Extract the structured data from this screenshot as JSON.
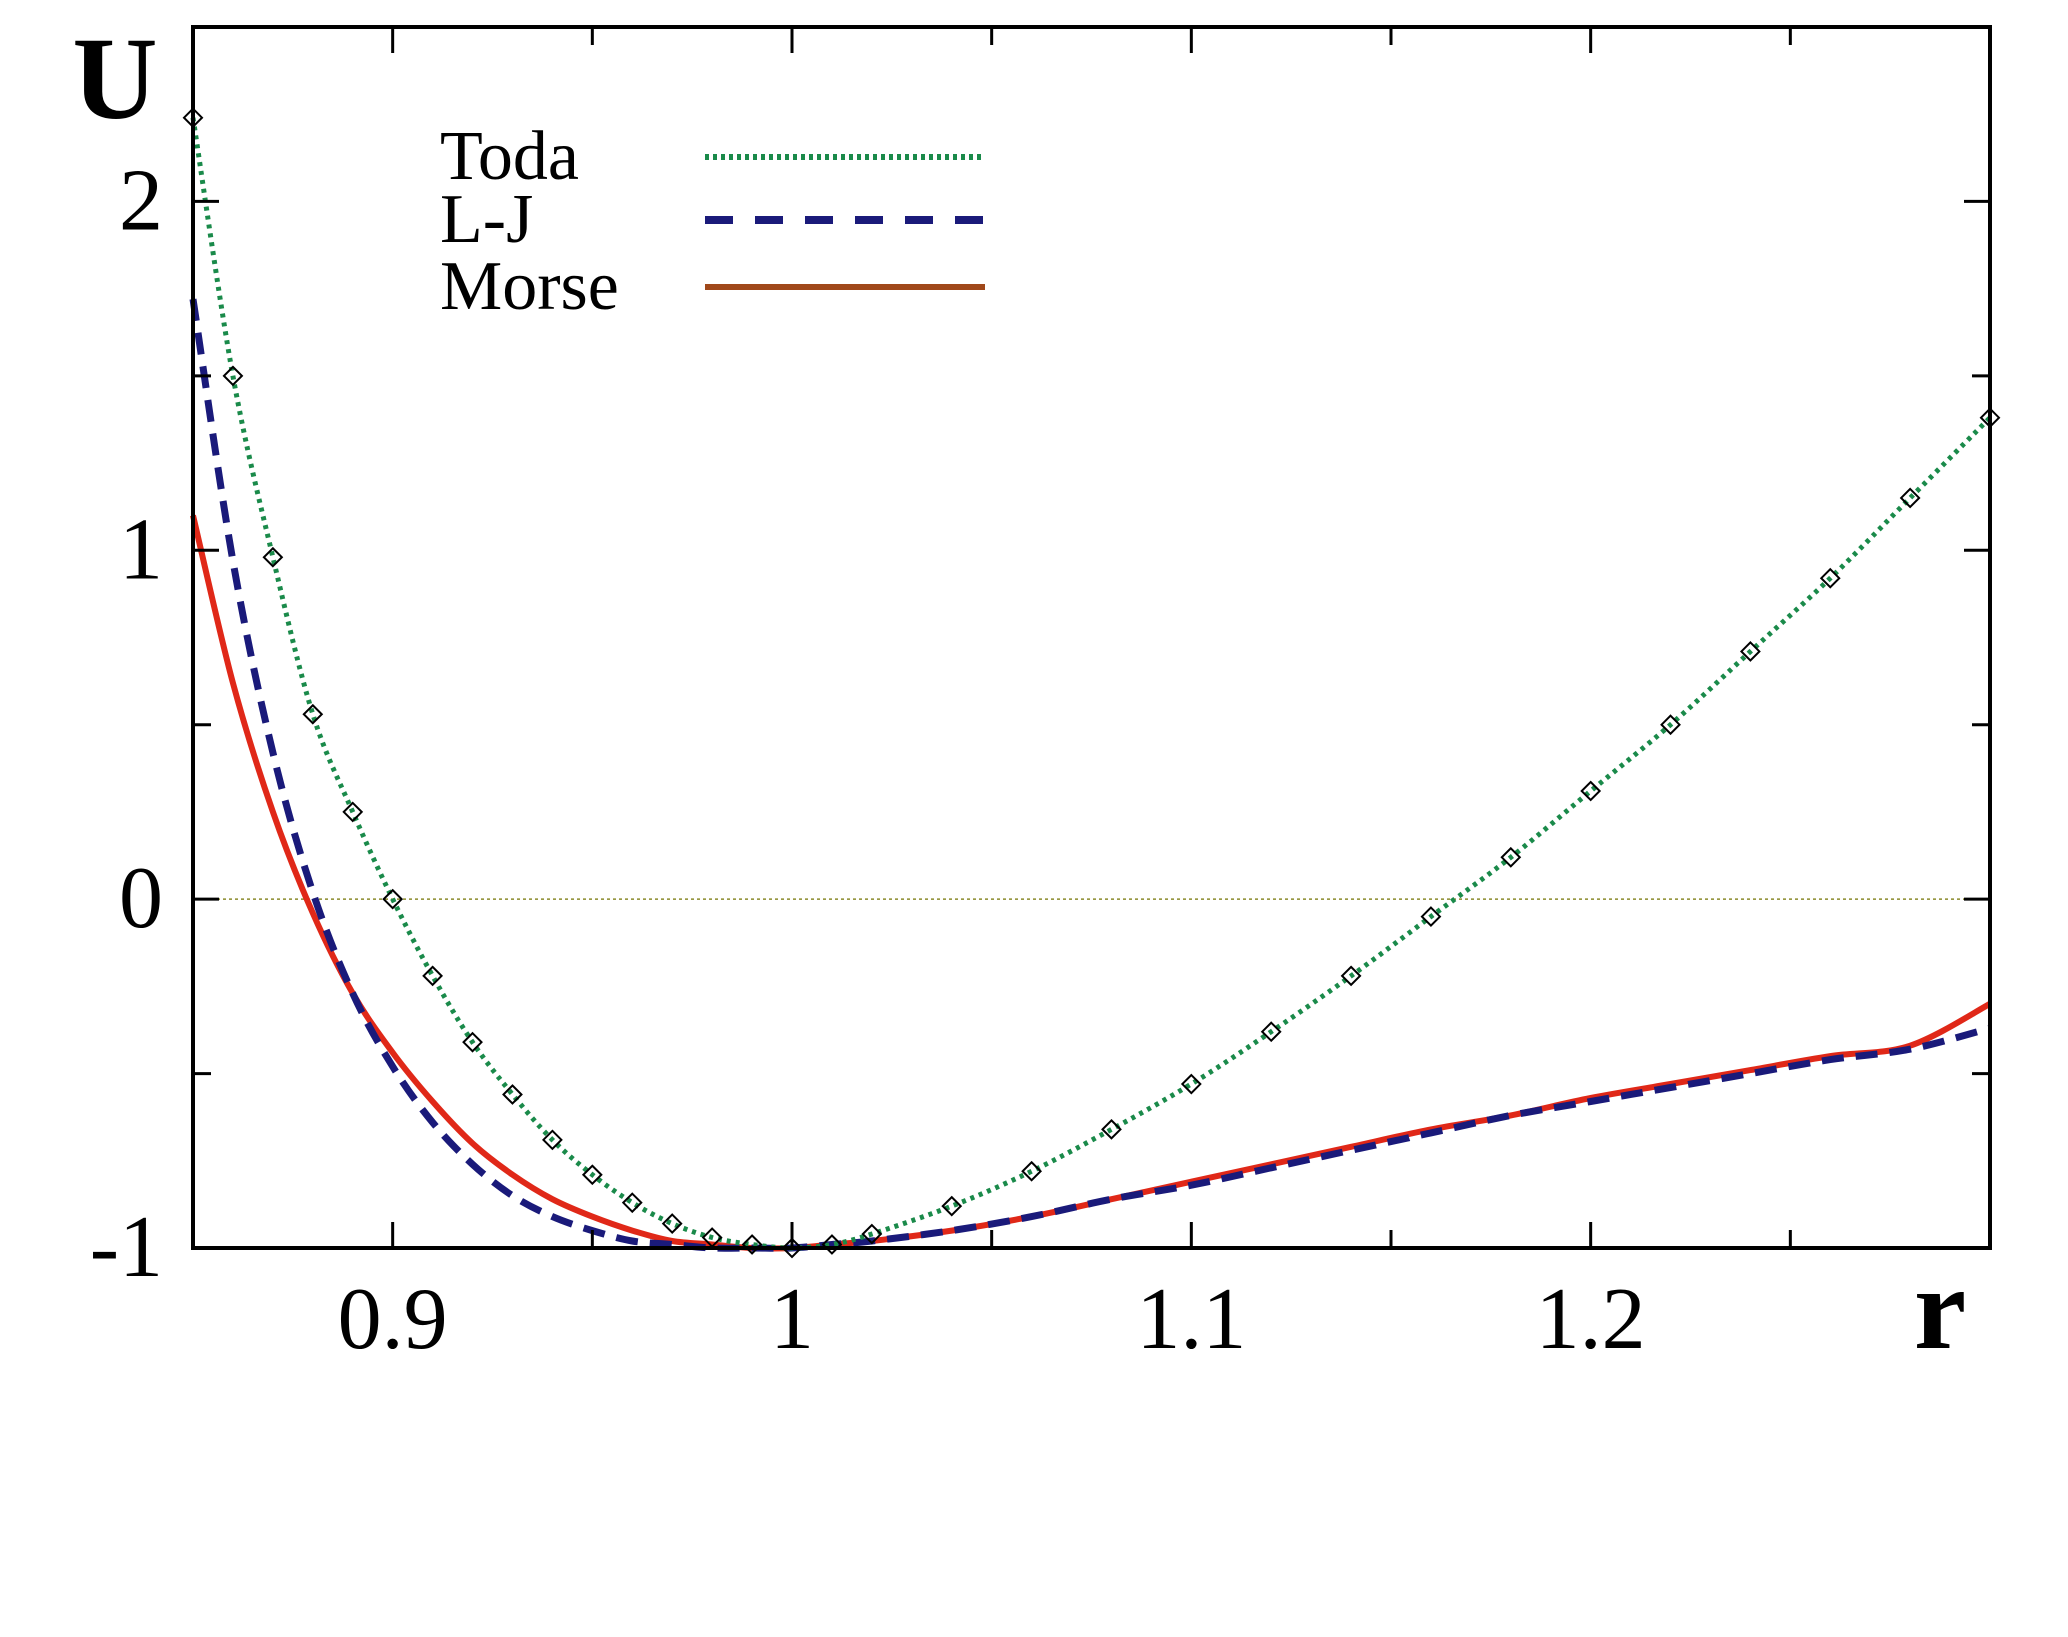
{
  "chart_data": {
    "type": "line",
    "xlabel": "r",
    "ylabel": "U",
    "xlim": [
      0.85,
      1.3
    ],
    "ylim": [
      -1,
      2.5
    ],
    "x_ticks": [
      {
        "value": 0.9,
        "label": "0.9"
      },
      {
        "value": 1.0,
        "label": "1"
      },
      {
        "value": 1.1,
        "label": "1.1"
      },
      {
        "value": 1.2,
        "label": "1.2"
      }
    ],
    "y_ticks": [
      {
        "value": -1,
        "label": "-1"
      },
      {
        "value": 0,
        "label": "0"
      },
      {
        "value": 1,
        "label": "1"
      },
      {
        "value": 2,
        "label": "2"
      }
    ],
    "x_minor_ticks": [
      0.95,
      1.05,
      1.15,
      1.25
    ],
    "y_minor_ticks": [
      -0.5,
      0.5,
      1.5
    ],
    "zero_line": {
      "y": 0,
      "color": "#8a8a2a"
    },
    "legend_position": "top-left",
    "series": [
      {
        "name": "Toda",
        "color": "#1a8a4a",
        "style": "dotted",
        "markers": "diamond",
        "marker_color": "#000000",
        "x": [
          0.85,
          0.86,
          0.87,
          0.88,
          0.89,
          0.9,
          0.91,
          0.92,
          0.93,
          0.94,
          0.95,
          0.96,
          0.97,
          0.98,
          0.99,
          1.0,
          1.01,
          1.02,
          1.04,
          1.06,
          1.08,
          1.1,
          1.12,
          1.14,
          1.16,
          1.18,
          1.2,
          1.22,
          1.24,
          1.26,
          1.28,
          1.3
        ],
        "y": [
          2.24,
          1.5,
          0.98,
          0.53,
          0.25,
          0.0,
          -0.22,
          -0.41,
          -0.56,
          -0.69,
          -0.79,
          -0.87,
          -0.93,
          -0.97,
          -0.99,
          -1.0,
          -0.99,
          -0.96,
          -0.88,
          -0.78,
          -0.66,
          -0.53,
          -0.38,
          -0.22,
          -0.05,
          0.12,
          0.31,
          0.5,
          0.71,
          0.92,
          1.15,
          1.38
        ]
      },
      {
        "name": "L-J",
        "color": "#1a1a7a",
        "style": "dashed",
        "x": [
          0.85,
          0.86,
          0.87,
          0.88,
          0.89,
          0.9,
          0.91,
          0.92,
          0.93,
          0.94,
          0.95,
          0.96,
          0.97,
          0.98,
          0.99,
          1.0,
          1.01,
          1.02,
          1.04,
          1.06,
          1.08,
          1.1,
          1.12,
          1.14,
          1.16,
          1.18,
          1.2,
          1.22,
          1.24,
          1.26,
          1.28,
          1.3
        ],
        "y": [
          1.72,
          0.97,
          0.42,
          0.02,
          -0.27,
          -0.48,
          -0.64,
          -0.76,
          -0.85,
          -0.91,
          -0.95,
          -0.98,
          -0.99,
          -1.0,
          -1.0,
          -1.0,
          -0.99,
          -0.98,
          -0.95,
          -0.91,
          -0.86,
          -0.82,
          -0.77,
          -0.72,
          -0.67,
          -0.62,
          -0.58,
          -0.54,
          -0.5,
          -0.46,
          -0.43,
          -0.37
        ]
      },
      {
        "name": "Morse",
        "color": "#e02818",
        "legend_color": "#a0481a",
        "style": "solid",
        "x": [
          0.85,
          0.86,
          0.87,
          0.88,
          0.89,
          0.9,
          0.91,
          0.92,
          0.93,
          0.94,
          0.95,
          0.96,
          0.97,
          0.98,
          0.99,
          1.0,
          1.01,
          1.02,
          1.04,
          1.06,
          1.08,
          1.1,
          1.12,
          1.14,
          1.16,
          1.18,
          1.2,
          1.22,
          1.24,
          1.26,
          1.28,
          1.3
        ],
        "y": [
          1.1,
          0.62,
          0.25,
          -0.04,
          -0.27,
          -0.44,
          -0.58,
          -0.7,
          -0.79,
          -0.86,
          -0.91,
          -0.95,
          -0.98,
          -0.99,
          -1.0,
          -1.0,
          -0.99,
          -0.98,
          -0.95,
          -0.91,
          -0.86,
          -0.81,
          -0.76,
          -0.71,
          -0.66,
          -0.62,
          -0.57,
          -0.53,
          -0.49,
          -0.45,
          -0.42,
          -0.3
        ]
      }
    ]
  }
}
